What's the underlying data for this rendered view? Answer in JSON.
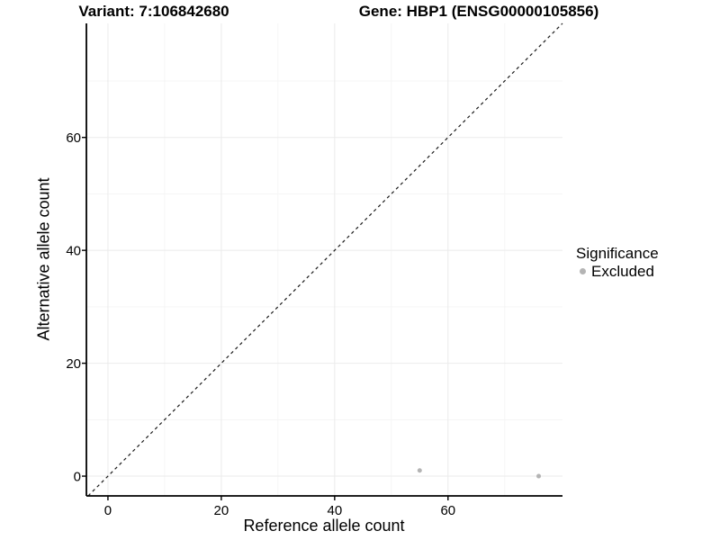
{
  "figure": {
    "background": "#ffffff",
    "text_color": "#000000"
  },
  "chart_data": {
    "type": "scatter",
    "title_left": "Variant: 7:106842680",
    "title_right": "Gene: HBP1 (ENSG00000105856)",
    "xlabel": "Reference allele count",
    "ylabel": "Alternative allele count",
    "xlim": [
      -3.8,
      80.2
    ],
    "ylim": [
      -3.5,
      80.2
    ],
    "x_ticks": [
      0,
      20,
      40,
      60
    ],
    "y_ticks": [
      0,
      20,
      40,
      60
    ],
    "x_minor": [
      10,
      30,
      50,
      70
    ],
    "y_minor": [
      10,
      30,
      50,
      70
    ],
    "grid": "major and minor gridlines, white panel, black left/bottom axis lines",
    "identity_line": {
      "slope": 1,
      "intercept": 0,
      "style": "dashed",
      "color": "#1a1a1a"
    },
    "series": [
      {
        "name": "Excluded",
        "color": "#b4b4b4",
        "marker": "circle",
        "points": [
          {
            "x": 55,
            "y": 1
          },
          {
            "x": 76,
            "y": 0
          }
        ]
      }
    ],
    "legend": {
      "title": "Significance",
      "position": "right",
      "entries": [
        {
          "label": "Excluded",
          "color": "#b4b4b4"
        }
      ]
    },
    "colors": {
      "axis": "#000000",
      "grid_major": "#ebebeb",
      "grid_minor": "#f5f5f5",
      "tick_label": "#000000"
    }
  }
}
